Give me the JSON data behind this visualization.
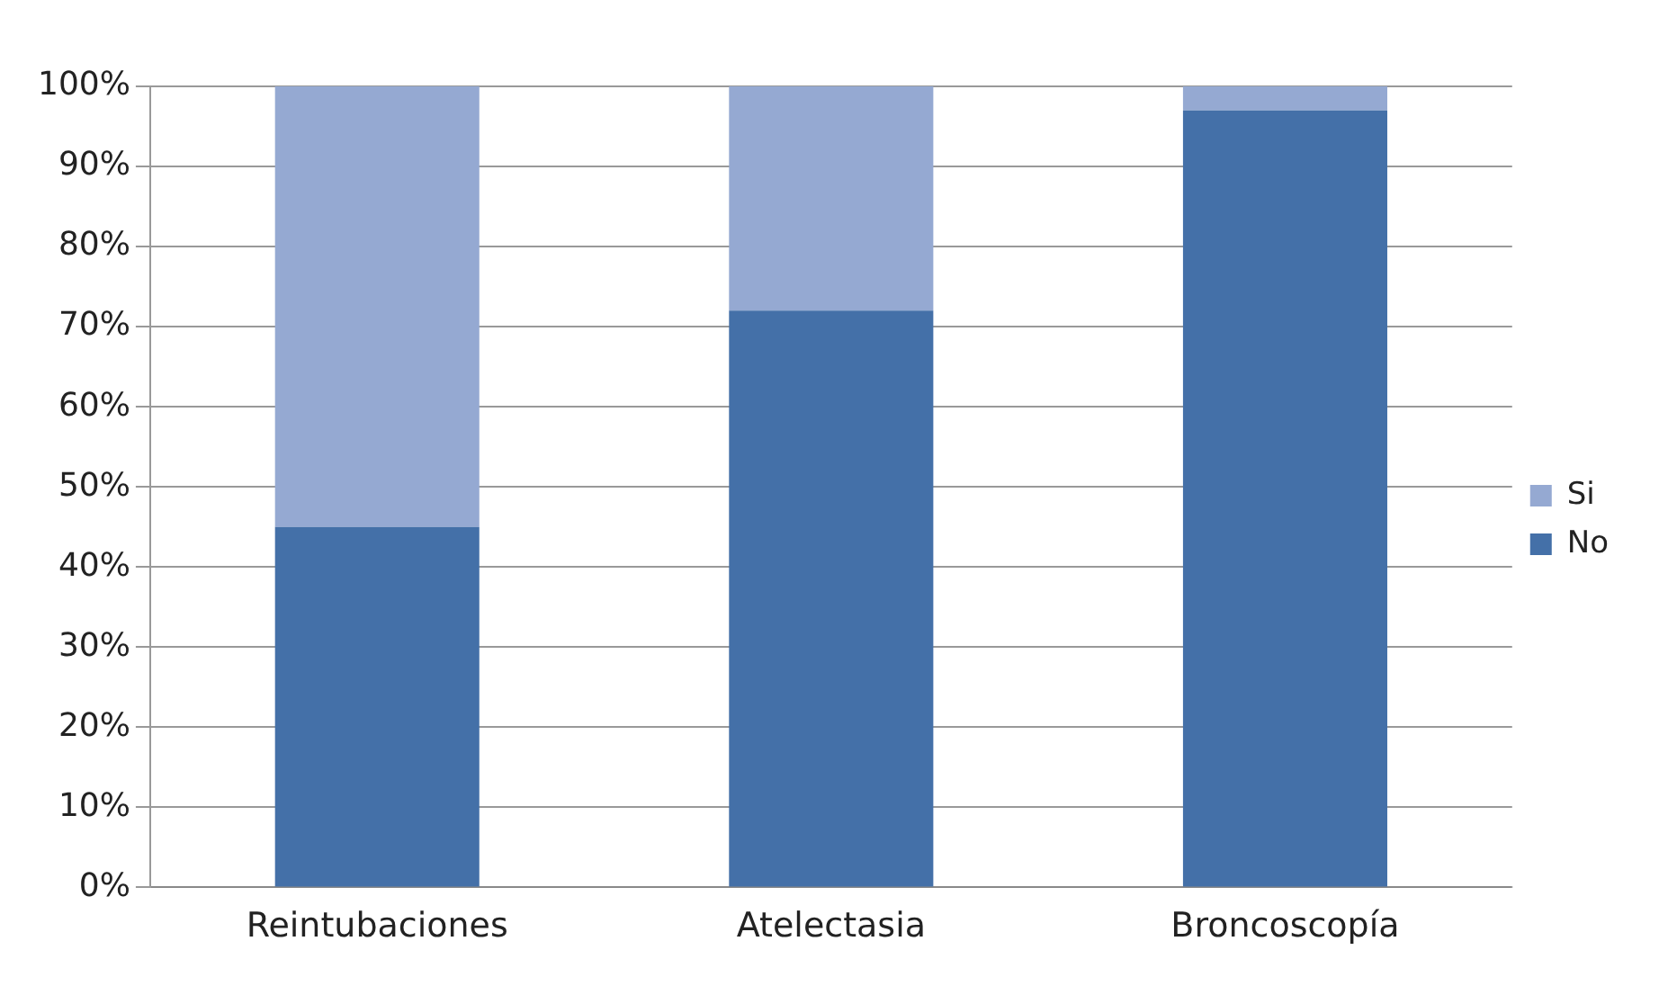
{
  "chart_data": {
    "type": "bar",
    "stacked": true,
    "categories": [
      "Reintubaciones",
      "Atelectasia",
      "Broncoscopía"
    ],
    "series": [
      {
        "name": "No",
        "color": "#4470a8",
        "values": [
          45,
          72,
          97
        ]
      },
      {
        "name": "Si",
        "color": "#95a9d2",
        "values": [
          55,
          28,
          3
        ]
      }
    ],
    "ylim": [
      0,
      100
    ],
    "yticks": [
      {
        "value": 0,
        "label": "0%"
      },
      {
        "value": 10,
        "label": "10%"
      },
      {
        "value": 20,
        "label": "20%"
      },
      {
        "value": 30,
        "label": "30%"
      },
      {
        "value": 40,
        "label": "40%"
      },
      {
        "value": 50,
        "label": "50%"
      },
      {
        "value": 60,
        "label": "60%"
      },
      {
        "value": 70,
        "label": "70%"
      },
      {
        "value": 80,
        "label": "80%"
      },
      {
        "value": 90,
        "label": "90%"
      },
      {
        "value": 100,
        "label": "100%"
      }
    ],
    "grid": "y",
    "legend": "right"
  }
}
